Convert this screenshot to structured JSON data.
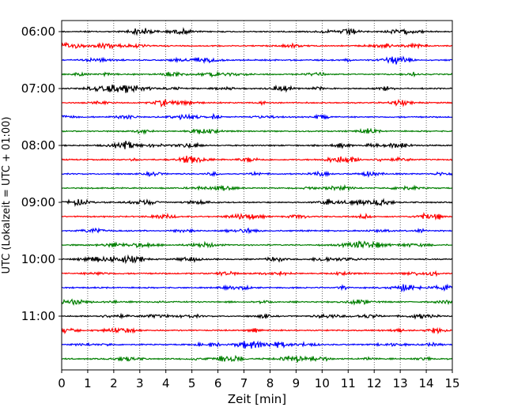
{
  "chart_data": {
    "type": "line",
    "title": "",
    "xlabel": "Zeit  [min]",
    "ylabel": "UTC (Lokalzeit = UTC + 01:00)",
    "xlim": [
      0,
      15
    ],
    "x_ticks": [
      "0",
      "1",
      "2",
      "3",
      "4",
      "5",
      "6",
      "7",
      "8",
      "9",
      "10",
      "11",
      "12",
      "13",
      "14",
      "15"
    ],
    "y_ticks": [
      "06:00",
      "07:00",
      "08:00",
      "09:00",
      "10:00",
      "11:00"
    ],
    "grid": "vertical-dotted",
    "trace_interval_minutes": 15,
    "trace_count": 24,
    "first_trace": "06:00",
    "trace_colors": [
      "#000000",
      "#ff0000",
      "#0000ff",
      "#007f00"
    ]
  }
}
